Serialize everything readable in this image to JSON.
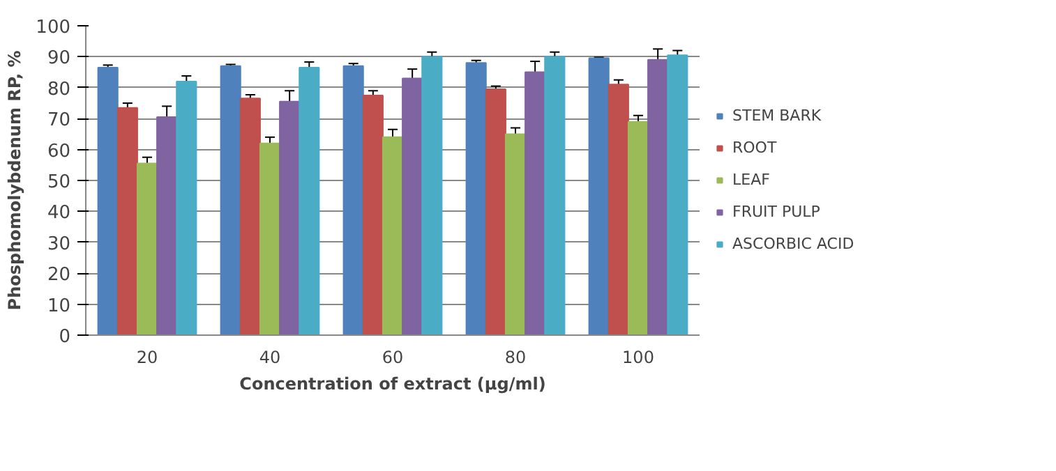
{
  "chart_data": {
    "type": "bar",
    "xlabel": "Concentration of extract (µg/ml)",
    "ylabel": "Phosphomolybdenum RP, %",
    "categories": [
      "20",
      "40",
      "60",
      "80",
      "100"
    ],
    "series": [
      {
        "name": "STEM BARK",
        "color": "#4f81bd",
        "values": [
          86.5,
          87,
          87,
          88,
          89.5
        ],
        "errors": [
          0.8,
          0.5,
          0.8,
          0.8,
          0.3
        ]
      },
      {
        "name": "ROOT",
        "color": "#c0504d",
        "values": [
          73.5,
          76.5,
          77.5,
          79.5,
          81
        ],
        "errors": [
          1.5,
          1.2,
          1.5,
          1,
          1.5
        ]
      },
      {
        "name": "LEAF",
        "color": "#9bbb59",
        "values": [
          55.5,
          62,
          64,
          65,
          69
        ],
        "errors": [
          2,
          2,
          2.5,
          2,
          2
        ]
      },
      {
        "name": "FRUIT PULP",
        "color": "#8064a2",
        "values": [
          70.5,
          75.5,
          83,
          85,
          89
        ],
        "errors": [
          3.5,
          3.5,
          3,
          3.5,
          3.5
        ]
      },
      {
        "name": "ASCORBIC ACID",
        "color": "#4bacc6",
        "values": [
          82,
          86.5,
          90,
          90,
          90.5
        ],
        "errors": [
          1.8,
          1.8,
          1.5,
          1.5,
          1.5
        ]
      }
    ],
    "ylim": [
      0,
      100
    ],
    "yticks": [
      0,
      10,
      20,
      30,
      40,
      50,
      60,
      70,
      80,
      90,
      100
    ],
    "grid": "y",
    "legend": "right"
  }
}
